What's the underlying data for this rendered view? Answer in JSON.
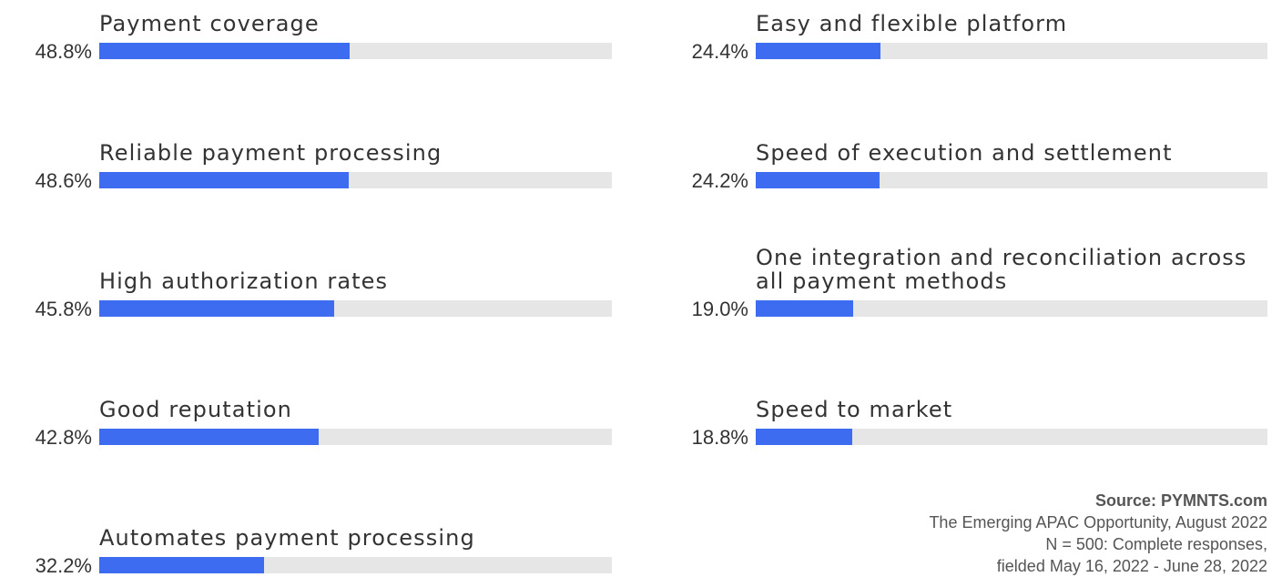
{
  "chart_data": {
    "type": "bar",
    "categories": [
      "Payment coverage",
      "Reliable payment processing",
      "High authorization rates",
      "Good reputation",
      "Automates payment processing",
      "Easy and flexible platform",
      "Speed of execution and settlement",
      "One integration and reconciliation across all payment methods",
      "Speed to market"
    ],
    "values": [
      48.8,
      48.6,
      45.8,
      42.8,
      32.2,
      24.4,
      24.2,
      19.0,
      18.8
    ],
    "value_labels": [
      "48.8%",
      "48.6%",
      "45.8%",
      "42.8%",
      "32.2%",
      "24.4%",
      "24.2%",
      "19.0%",
      "18.8%"
    ],
    "color": "#3d6cf0",
    "track_color": "#e6e6e6",
    "xlim": [
      0,
      100
    ],
    "source": "Source: PYMNTS.com",
    "notes": [
      "The Emerging APAC Opportunity, August 2022",
      "N = 500: Complete responses,",
      "fielded May 16, 2022 - June 28, 2022"
    ]
  }
}
